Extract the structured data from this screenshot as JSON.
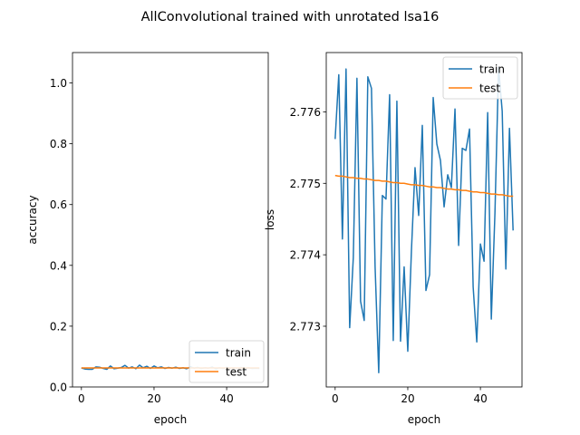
{
  "figure": {
    "title": "AllConvolutional trained with unrotated lsa16"
  },
  "chart_data": [
    {
      "type": "line",
      "xlabel": "epoch",
      "ylabel": "accuracy",
      "xlim": [
        -2.45,
        51.45
      ],
      "ylim": [
        0.0,
        1.1
      ],
      "xticks": [
        0,
        20,
        40
      ],
      "yticks": [
        0.0,
        0.2,
        0.4,
        0.6,
        0.8,
        1.0
      ],
      "ytick_labels": [
        "0.0",
        "0.2",
        "0.4",
        "0.6",
        "0.8",
        "1.0"
      ],
      "legend_position": "lower-right",
      "series": [
        {
          "name": "train",
          "color": "#1f77b4",
          "values": [
            0.0625,
            0.059,
            0.058,
            0.058,
            0.066,
            0.065,
            0.061,
            0.058,
            0.069,
            0.06,
            0.062,
            0.064,
            0.071,
            0.062,
            0.066,
            0.06,
            0.072,
            0.063,
            0.068,
            0.061,
            0.069,
            0.063,
            0.066,
            0.061,
            0.064,
            0.062,
            0.065,
            0.061,
            0.063,
            0.06,
            0.066,
            0.062,
            0.064,
            0.061,
            0.063,
            0.062,
            0.065,
            0.06,
            0.063,
            0.061,
            0.064,
            0.062,
            0.063,
            0.061,
            0.064,
            0.06,
            0.063,
            0.061,
            0.062,
            0.061
          ]
        },
        {
          "name": "test",
          "color": "#ff7f0e",
          "values": [
            0.0625,
            0.0625,
            0.0625,
            0.0625,
            0.0625,
            0.0625,
            0.0625,
            0.0625,
            0.0625,
            0.0625,
            0.0625,
            0.0625,
            0.0625,
            0.0625,
            0.0625,
            0.0625,
            0.0625,
            0.0625,
            0.0625,
            0.0625,
            0.0625,
            0.0625,
            0.0625,
            0.0625,
            0.0625,
            0.0625,
            0.0625,
            0.0625,
            0.0625,
            0.0625,
            0.0625,
            0.0625,
            0.0625,
            0.0625,
            0.0625,
            0.0625,
            0.0625,
            0.0625,
            0.0625,
            0.0625,
            0.0625,
            0.0625,
            0.0625,
            0.0625,
            0.0625,
            0.0625,
            0.0625,
            0.0625,
            0.0625,
            0.0625
          ]
        }
      ]
    },
    {
      "type": "line",
      "xlabel": "epoch",
      "ylabel": "loss",
      "xlim": [
        -2.45,
        51.45
      ],
      "ylim": [
        2.77215,
        2.77683
      ],
      "xticks": [
        0,
        20,
        40
      ],
      "yticks": [
        2.773,
        2.774,
        2.775,
        2.776
      ],
      "ytick_labels": [
        "2.773",
        "2.774",
        "2.775",
        "2.776"
      ],
      "legend_position": "upper-right",
      "series": [
        {
          "name": "train",
          "color": "#1f77b4",
          "values": [
            2.77562,
            2.77652,
            2.77422,
            2.7766,
            2.77298,
            2.77396,
            2.77647,
            2.77335,
            2.77308,
            2.77649,
            2.77633,
            2.77383,
            2.77235,
            2.77483,
            2.77478,
            2.77624,
            2.7728,
            2.77615,
            2.77279,
            2.77383,
            2.77265,
            2.77405,
            2.77522,
            2.77455,
            2.77581,
            2.7735,
            2.77372,
            2.7762,
            2.77555,
            2.77532,
            2.77467,
            2.77512,
            2.77494,
            2.77604,
            2.77413,
            2.77549,
            2.77546,
            2.77576,
            2.77355,
            2.77278,
            2.77415,
            2.77391,
            2.77599,
            2.7731,
            2.77458,
            2.77662,
            2.77601,
            2.7738,
            2.77577,
            2.77434
          ]
        },
        {
          "name": "test",
          "color": "#ff7f0e",
          "values": [
            2.77511,
            2.7751,
            2.7751,
            2.77509,
            2.77508,
            2.77508,
            2.77507,
            2.77507,
            2.77506,
            2.77506,
            2.77505,
            2.77504,
            2.77504,
            2.77503,
            2.77503,
            2.77502,
            2.77501,
            2.77501,
            2.775,
            2.775,
            2.77499,
            2.77498,
            2.77498,
            2.77497,
            2.77497,
            2.77496,
            2.77495,
            2.77495,
            2.77494,
            2.77494,
            2.77493,
            2.77492,
            2.77492,
            2.77491,
            2.77491,
            2.7749,
            2.7749,
            2.77489,
            2.77488,
            2.77488,
            2.77487,
            2.77487,
            2.77486,
            2.77485,
            2.77485,
            2.77484,
            2.77484,
            2.77483,
            2.77482,
            2.77482
          ]
        }
      ]
    }
  ]
}
